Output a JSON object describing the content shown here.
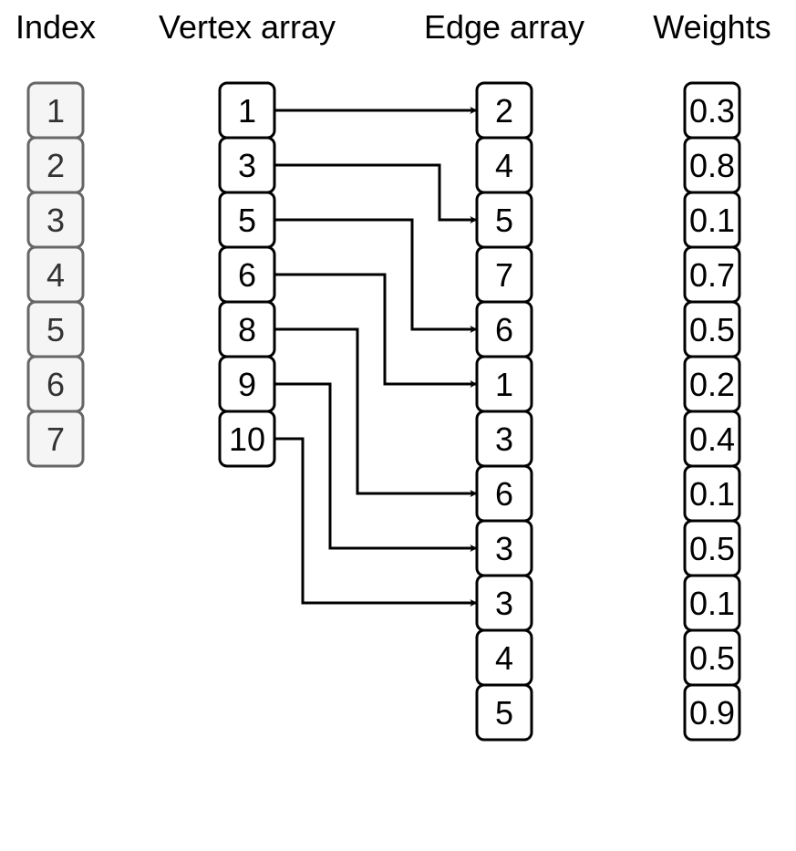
{
  "headers": {
    "index": "Index",
    "vertex": "Vertex array",
    "edge": "Edge array",
    "weights": "Weights"
  },
  "index_array": [
    "1",
    "2",
    "3",
    "4",
    "5",
    "6",
    "7"
  ],
  "vertex_array": [
    "1",
    "3",
    "5",
    "6",
    "8",
    "9",
    "10"
  ],
  "edge_array": [
    "2",
    "4",
    "5",
    "7",
    "6",
    "1",
    "3",
    "6",
    "3",
    "3",
    "4",
    "5"
  ],
  "weights": [
    "0.3",
    "0.8",
    "0.1",
    "0.7",
    "0.5",
    "0.2",
    "0.4",
    "0.1",
    "0.5",
    "0.1",
    "0.5",
    "0.9"
  ],
  "pointers": [
    {
      "from_vertex": 1,
      "to_edge": 1
    },
    {
      "from_vertex": 2,
      "to_edge": 3
    },
    {
      "from_vertex": 3,
      "to_edge": 5
    },
    {
      "from_vertex": 4,
      "to_edge": 6
    },
    {
      "from_vertex": 5,
      "to_edge": 8
    },
    {
      "from_vertex": 6,
      "to_edge": 9
    },
    {
      "from_vertex": 7,
      "to_edge": 10
    }
  ],
  "colors": {
    "index_fill": "#f5f5f5",
    "index_stroke": "#666666",
    "index_text": "#333333",
    "cell_fill": "#ffffff",
    "cell_stroke": "#000000",
    "cell_text": "#000000",
    "arrow": "#000000"
  }
}
